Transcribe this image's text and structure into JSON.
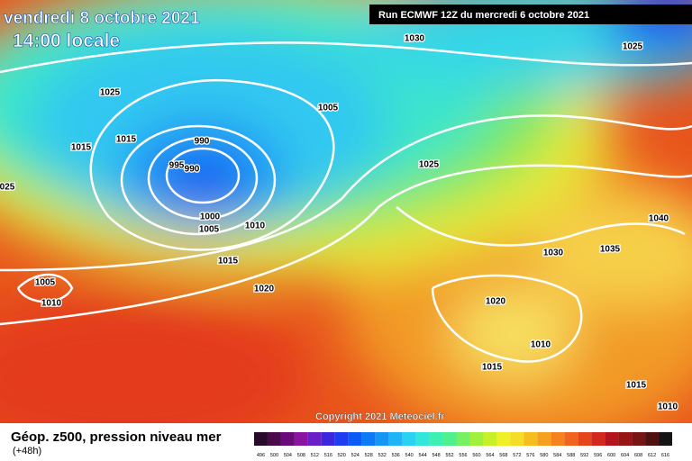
{
  "header": {
    "title": "vendredi 8 octobre 2021",
    "subtitle": "14:00 locale",
    "run": "Run ECMWF 12Z du mercredi 6 octobre 2021"
  },
  "isobar_labels": [
    "1030",
    "1025",
    "1025",
    "1005",
    "1015",
    "990",
    "1015",
    "995",
    "990",
    "1025",
    "025",
    "1000",
    "1005",
    "1010",
    "1040",
    "1035",
    "1030",
    "1015",
    "1005",
    "1020",
    "1010",
    "1020",
    "1010",
    "1015",
    "1015",
    "1010"
  ],
  "copyright": "Copyright 2021 Meteociel.fr",
  "footer": {
    "title": "Géop. z500, pression niveau mer",
    "lead": "(+48h)"
  },
  "legend": {
    "labels": [
      496,
      500,
      504,
      508,
      512,
      516,
      520,
      524,
      528,
      532,
      536,
      540,
      544,
      548,
      552,
      556,
      560,
      564,
      568,
      572,
      576,
      580,
      584,
      588,
      592,
      596,
      600,
      604,
      608,
      612,
      616
    ],
    "colors": [
      "#2a0a2a",
      "#4a0a4a",
      "#6a0a7a",
      "#8a14a0",
      "#6a1ec8",
      "#3c28dc",
      "#1e3cf0",
      "#0a5af5",
      "#0a7af5",
      "#1496f5",
      "#1eb4f5",
      "#28d2f0",
      "#32e6dc",
      "#3cf0b4",
      "#50f08c",
      "#78f064",
      "#a0f03c",
      "#c8f028",
      "#f0f028",
      "#f5dc28",
      "#f5be1e",
      "#f5a01e",
      "#f5821e",
      "#f0641e",
      "#e6461e",
      "#d2281e",
      "#b4141e",
      "#961414",
      "#781414",
      "#501010",
      "#141414"
    ]
  }
}
